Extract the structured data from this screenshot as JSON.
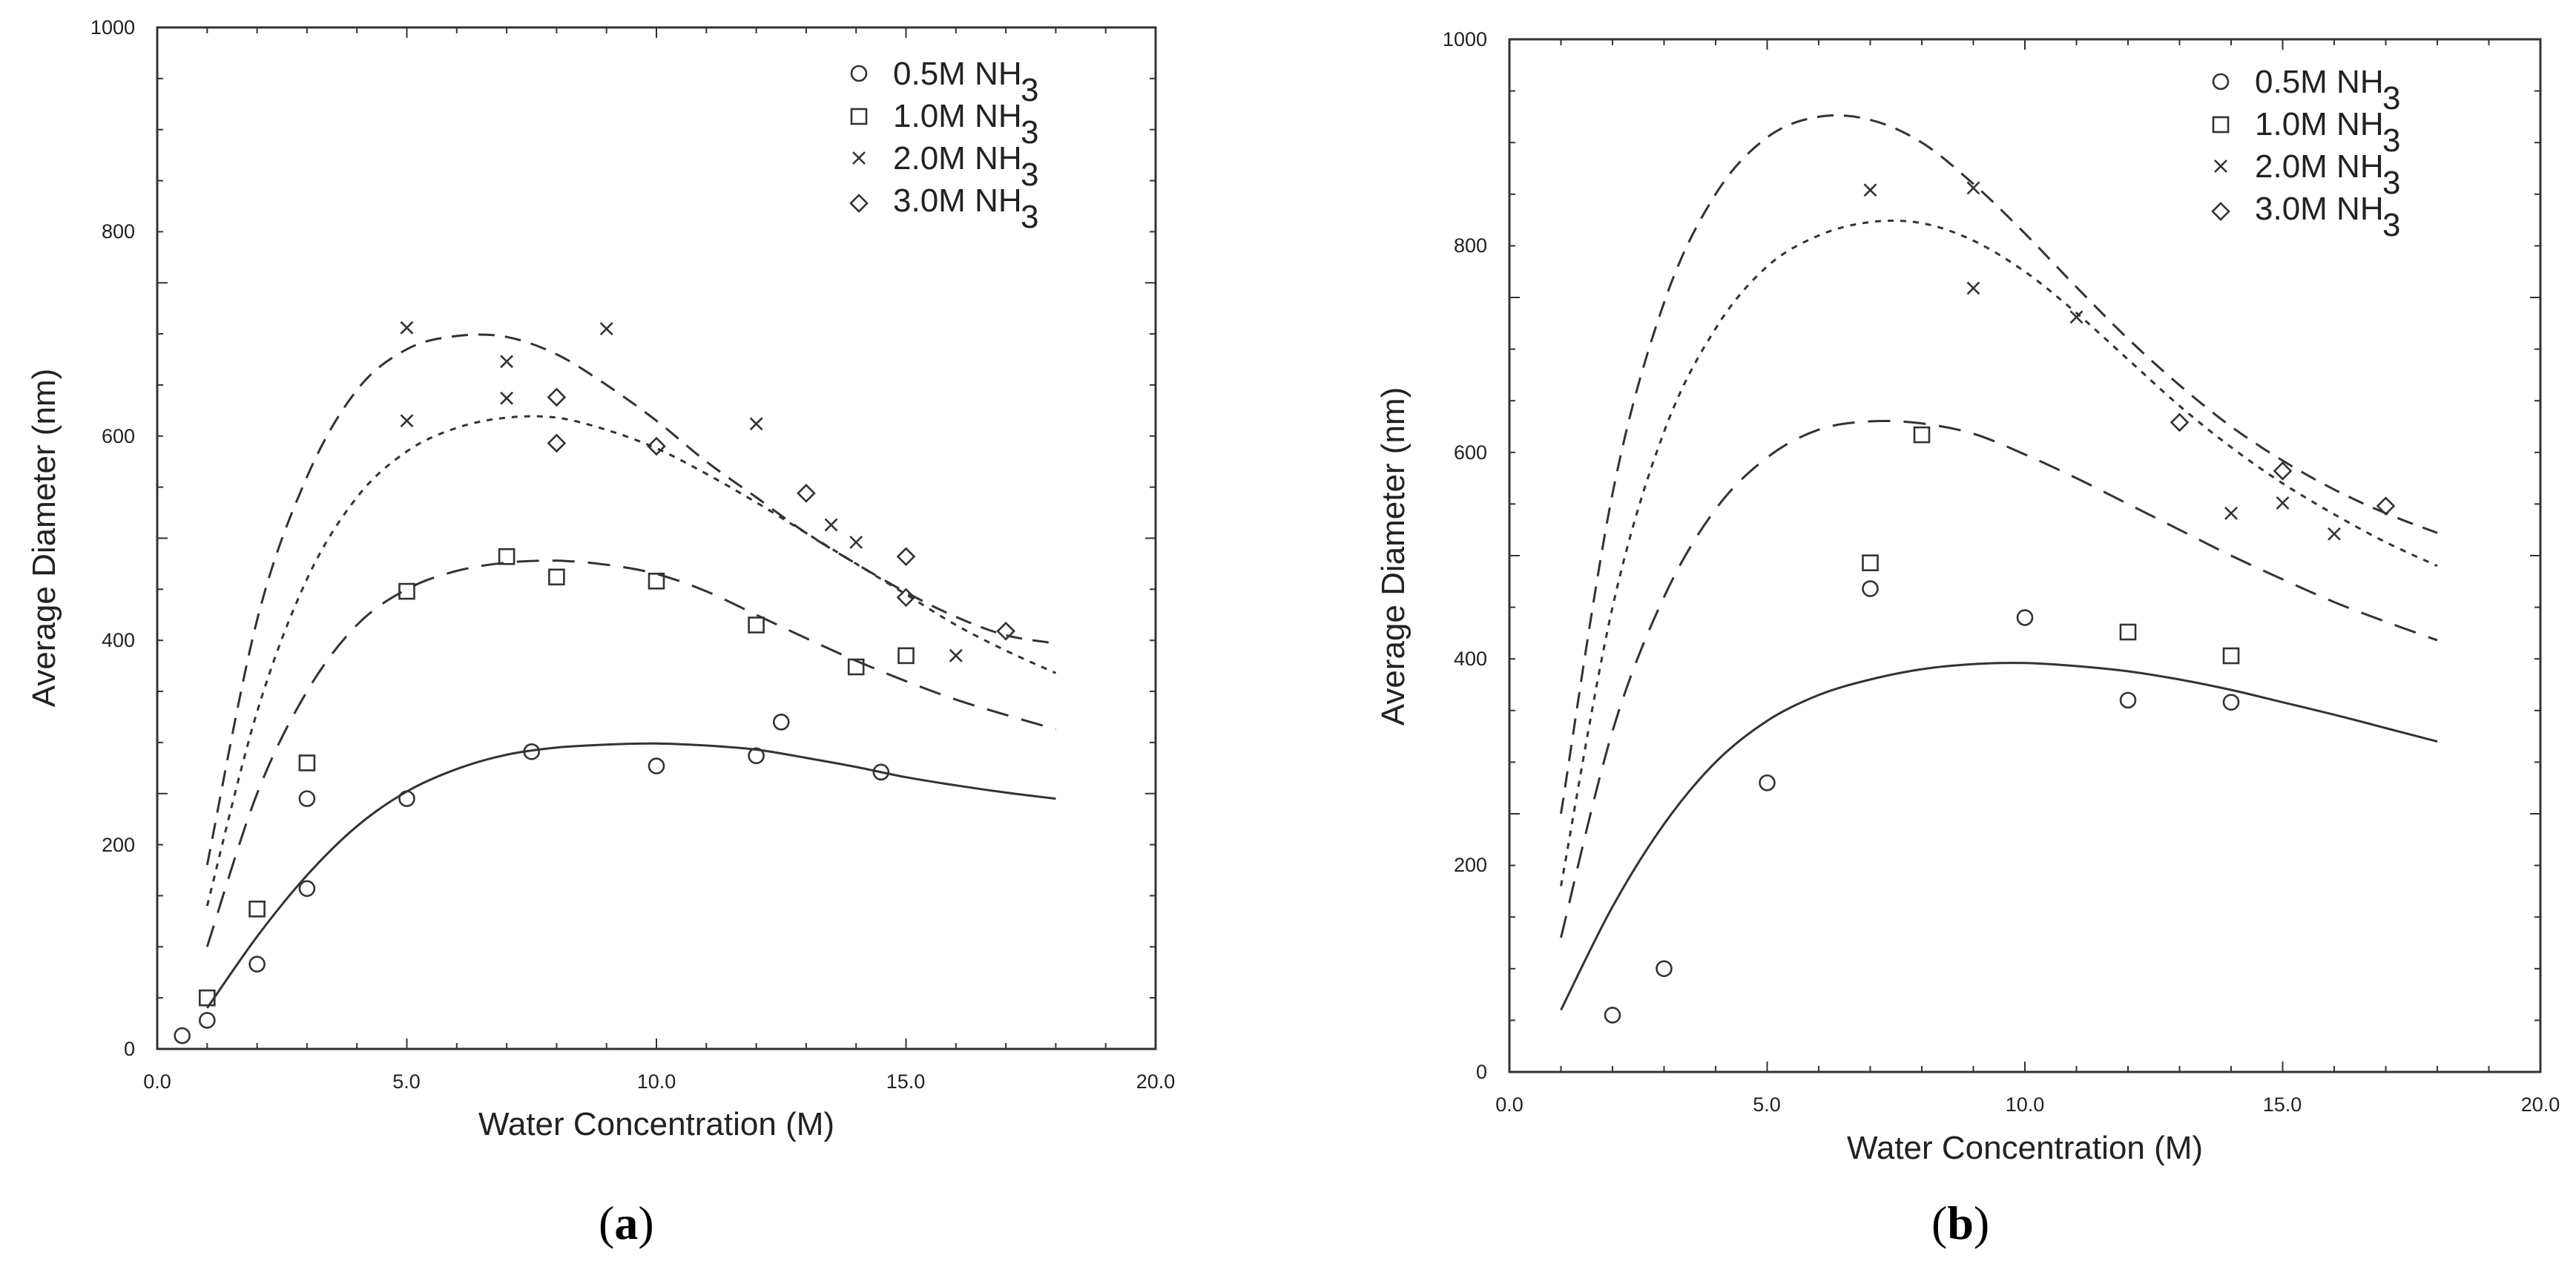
{
  "chart_data": [
    {
      "type": "scatter",
      "panel_label": "a",
      "title": "",
      "xlabel": "Water Concentration (M)",
      "ylabel": "Average Diameter (nm)",
      "xlim": [
        0,
        20
      ],
      "ylim": [
        0,
        1000
      ],
      "xticks": [
        "0.0",
        "5.0",
        "10.0",
        "15.0",
        "20.0"
      ],
      "yticks": [
        "0",
        "200",
        "400",
        "600",
        "800",
        "1000"
      ],
      "legend_position": "top-right",
      "series": [
        {
          "name": "0.5M NH",
          "sub": "3",
          "marker": "circle",
          "points": [
            [
              0.5,
              13
            ],
            [
              1.0,
              28
            ],
            [
              2.0,
              83
            ],
            [
              3.0,
              157
            ],
            [
              3.0,
              245
            ],
            [
              5.0,
              245
            ],
            [
              7.5,
              291
            ],
            [
              10.0,
              277
            ],
            [
              12.0,
              287
            ],
            [
              12.5,
              320
            ],
            [
              14.5,
              271
            ]
          ],
          "curve": [
            [
              1.0,
              40
            ],
            [
              2.0,
              110
            ],
            [
              3.0,
              170
            ],
            [
              4.0,
              218
            ],
            [
              5.0,
              252
            ],
            [
              6.0,
              274
            ],
            [
              7.0,
              288
            ],
            [
              8.0,
              295
            ],
            [
              9.0,
              298
            ],
            [
              10.0,
              299
            ],
            [
              11.0,
              297
            ],
            [
              12.0,
              293
            ],
            [
              13.0,
              285
            ],
            [
              14.0,
              276
            ],
            [
              15.0,
              266
            ],
            [
              16.0,
              258
            ],
            [
              17.0,
              251
            ],
            [
              18.0,
              245
            ]
          ]
        },
        {
          "name": "1.0M NH",
          "sub": "3",
          "marker": "square",
          "points": [
            [
              1.0,
              50
            ],
            [
              2.0,
              137
            ],
            [
              3.0,
              280
            ],
            [
              5.0,
              448
            ],
            [
              7.0,
              482
            ],
            [
              8.0,
              462
            ],
            [
              10.0,
              458
            ],
            [
              12.0,
              415
            ],
            [
              14.0,
              374
            ],
            [
              15.0,
              385
            ]
          ],
          "curve": [
            [
              1.0,
              100
            ],
            [
              2.0,
              250
            ],
            [
              3.0,
              350
            ],
            [
              4.0,
              415
            ],
            [
              5.0,
              450
            ],
            [
              6.0,
              468
            ],
            [
              7.0,
              476
            ],
            [
              8.0,
              478
            ],
            [
              9.0,
              474
            ],
            [
              10.0,
              465
            ],
            [
              11.0,
              448
            ],
            [
              12.0,
              425
            ],
            [
              13.0,
              402
            ],
            [
              14.0,
              380
            ],
            [
              15.0,
              360
            ],
            [
              16.0,
              342
            ],
            [
              17.0,
              327
            ],
            [
              18.0,
              313
            ]
          ]
        },
        {
          "name": "2.0M NH",
          "sub": "3",
          "marker": "cross",
          "points": [
            [
              5.0,
              706
            ],
            [
              5.0,
              615
            ],
            [
              7.0,
              673
            ],
            [
              7.0,
              637
            ],
            [
              9.0,
              705
            ],
            [
              12.0,
              612
            ],
            [
              13.5,
              513
            ],
            [
              14.0,
              496
            ],
            [
              16.0,
              385
            ]
          ],
          "curve": [
            [
              1.0,
              180
            ],
            [
              2.0,
              420
            ],
            [
              3.0,
              560
            ],
            [
              4.0,
              645
            ],
            [
              5.0,
              685
            ],
            [
              6.0,
              698
            ],
            [
              7.0,
              697
            ],
            [
              8.0,
              680
            ],
            [
              9.0,
              650
            ],
            [
              10.0,
              615
            ],
            [
              11.0,
              575
            ],
            [
              12.0,
              540
            ],
            [
              13.0,
              505
            ],
            [
              14.0,
              475
            ],
            [
              15.0,
              447
            ],
            [
              16.0,
              423
            ],
            [
              17.0,
              405
            ],
            [
              18.0,
              397
            ]
          ]
        },
        {
          "name": "3.0M NH",
          "sub": "3",
          "marker": "diamond",
          "points": [
            [
              8.0,
              593
            ],
            [
              8.0,
              638
            ],
            [
              10.0,
              590
            ],
            [
              13.0,
              544
            ],
            [
              15.0,
              482
            ],
            [
              15.0,
              442
            ],
            [
              17.0,
              409
            ]
          ],
          "curve": [
            [
              1.0,
              140
            ],
            [
              2.0,
              330
            ],
            [
              3.0,
              460
            ],
            [
              4.0,
              540
            ],
            [
              5.0,
              585
            ],
            [
              6.0,
              608
            ],
            [
              7.0,
              618
            ],
            [
              8.0,
              618
            ],
            [
              9.0,
              606
            ],
            [
              10.0,
              588
            ],
            [
              11.0,
              563
            ],
            [
              12.0,
              535
            ],
            [
              13.0,
              505
            ],
            [
              14.0,
              475
            ],
            [
              15.0,
              445
            ],
            [
              16.0,
              415
            ],
            [
              17.0,
              390
            ],
            [
              18.0,
              368
            ]
          ]
        }
      ]
    },
    {
      "type": "scatter",
      "panel_label": "b",
      "title": "",
      "xlabel": "Water Concentration (M)",
      "ylabel": "Average Diameter (nm)",
      "xlim": [
        0,
        20
      ],
      "ylim": [
        0,
        1000
      ],
      "xticks": [
        "0.0",
        "5.0",
        "10.0",
        "15.0",
        "20.0"
      ],
      "yticks": [
        "0",
        "200",
        "400",
        "600",
        "800",
        "1000"
      ],
      "legend_position": "top-right",
      "series": [
        {
          "name": "0.5M NH",
          "sub": "3",
          "marker": "circle",
          "points": [
            [
              2.0,
              55
            ],
            [
              3.0,
              100
            ],
            [
              5.0,
              280
            ],
            [
              7.0,
              468
            ],
            [
              10.0,
              440
            ],
            [
              12.0,
              360
            ],
            [
              14.0,
              358
            ]
          ],
          "curve": [
            [
              1.0,
              60
            ],
            [
              2.0,
              160
            ],
            [
              3.0,
              240
            ],
            [
              4.0,
              300
            ],
            [
              5.0,
              340
            ],
            [
              6.0,
              365
            ],
            [
              7.0,
              380
            ],
            [
              8.0,
              390
            ],
            [
              9.0,
              395
            ],
            [
              10.0,
              396
            ],
            [
              11.0,
              393
            ],
            [
              12.0,
              388
            ],
            [
              13.0,
              380
            ],
            [
              14.0,
              370
            ],
            [
              15.0,
              358
            ],
            [
              16.0,
              346
            ],
            [
              17.0,
              333
            ],
            [
              18.0,
              320
            ]
          ]
        },
        {
          "name": "1.0M NH",
          "sub": "3",
          "marker": "square",
          "points": [
            [
              7.0,
              493
            ],
            [
              8.0,
              617
            ],
            [
              12.0,
              426
            ],
            [
              14.0,
              403
            ]
          ],
          "curve": [
            [
              1.0,
              130
            ],
            [
              2.0,
              330
            ],
            [
              3.0,
              460
            ],
            [
              4.0,
              545
            ],
            [
              5.0,
              595
            ],
            [
              6.0,
              622
            ],
            [
              7.0,
              630
            ],
            [
              8.0,
              628
            ],
            [
              9.0,
              618
            ],
            [
              10.0,
              598
            ],
            [
              11.0,
              575
            ],
            [
              12.0,
              550
            ],
            [
              13.0,
              525
            ],
            [
              14.0,
              500
            ],
            [
              15.0,
              477
            ],
            [
              16.0,
              455
            ],
            [
              17.0,
              436
            ],
            [
              18.0,
              418
            ]
          ]
        },
        {
          "name": "2.0M NH",
          "sub": "3",
          "marker": "cross",
          "points": [
            [
              7.0,
              854
            ],
            [
              9.0,
              856
            ],
            [
              9.0,
              759
            ],
            [
              11.0,
              731
            ],
            [
              14.0,
              541
            ],
            [
              15.0,
              551
            ],
            [
              16.0,
              521
            ]
          ],
          "curve": [
            [
              1.0,
              250
            ],
            [
              2.0,
              560
            ],
            [
              3.0,
              745
            ],
            [
              4.0,
              850
            ],
            [
              5.0,
              905
            ],
            [
              6.0,
              925
            ],
            [
              7.0,
              922
            ],
            [
              8.0,
              900
            ],
            [
              9.0,
              860
            ],
            [
              10.0,
              812
            ],
            [
              11.0,
              760
            ],
            [
              12.0,
              710
            ],
            [
              13.0,
              665
            ],
            [
              14.0,
              625
            ],
            [
              15.0,
              592
            ],
            [
              16.0,
              564
            ],
            [
              17.0,
              541
            ],
            [
              18.0,
              522
            ]
          ]
        },
        {
          "name": "3.0M NH",
          "sub": "3",
          "marker": "diamond",
          "points": [
            [
              13.0,
              629
            ],
            [
              15.0,
              582
            ],
            [
              17.0,
              548
            ]
          ],
          "curve": [
            [
              1.0,
              180
            ],
            [
              2.0,
              450
            ],
            [
              3.0,
              620
            ],
            [
              4.0,
              720
            ],
            [
              5.0,
              780
            ],
            [
              6.0,
              810
            ],
            [
              7.0,
              823
            ],
            [
              8.0,
              822
            ],
            [
              9.0,
              805
            ],
            [
              10.0,
              775
            ],
            [
              11.0,
              735
            ],
            [
              12.0,
              690
            ],
            [
              13.0,
              645
            ],
            [
              14.0,
              605
            ],
            [
              15.0,
              570
            ],
            [
              16.0,
              540
            ],
            [
              17.0,
              513
            ],
            [
              18.0,
              490
            ]
          ]
        }
      ]
    }
  ]
}
